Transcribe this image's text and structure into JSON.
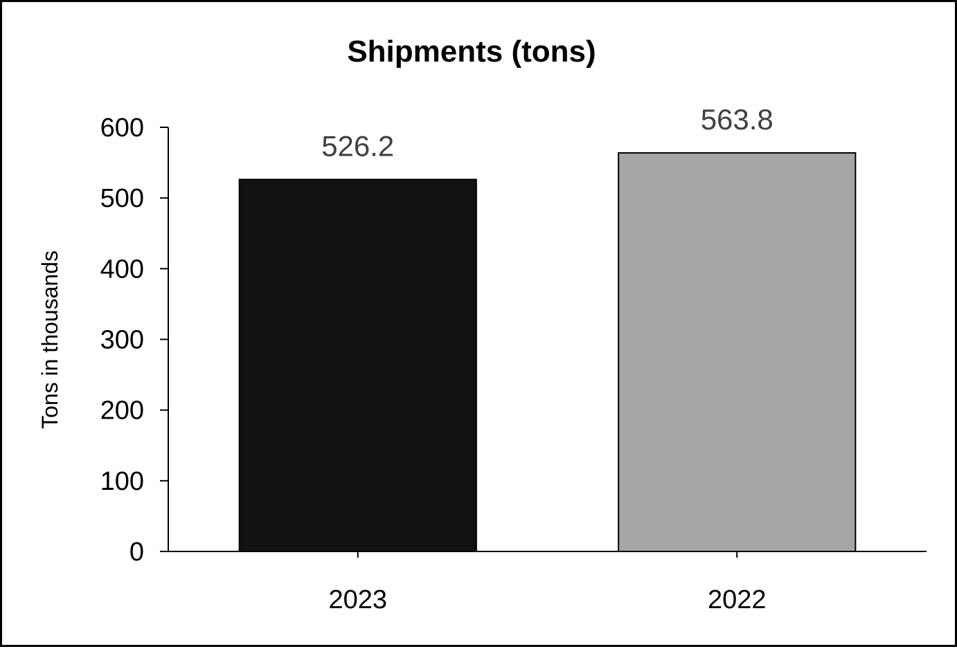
{
  "chart_data": {
    "type": "bar",
    "title": "Shipments (tons)",
    "xlabel": "",
    "ylabel": "Tons in thousands",
    "categories": [
      "2023",
      "2022"
    ],
    "values": [
      526.2,
      563.8
    ],
    "data_labels": [
      "526.2",
      "563.8"
    ],
    "ylim": [
      0,
      600
    ],
    "yticks": [
      "0",
      "100",
      "200",
      "300",
      "400",
      "500",
      "600"
    ],
    "bar_colors": [
      "#111111",
      "#a6a6a6"
    ],
    "data_label_color": "#404040",
    "grid": false,
    "legend": "none"
  }
}
